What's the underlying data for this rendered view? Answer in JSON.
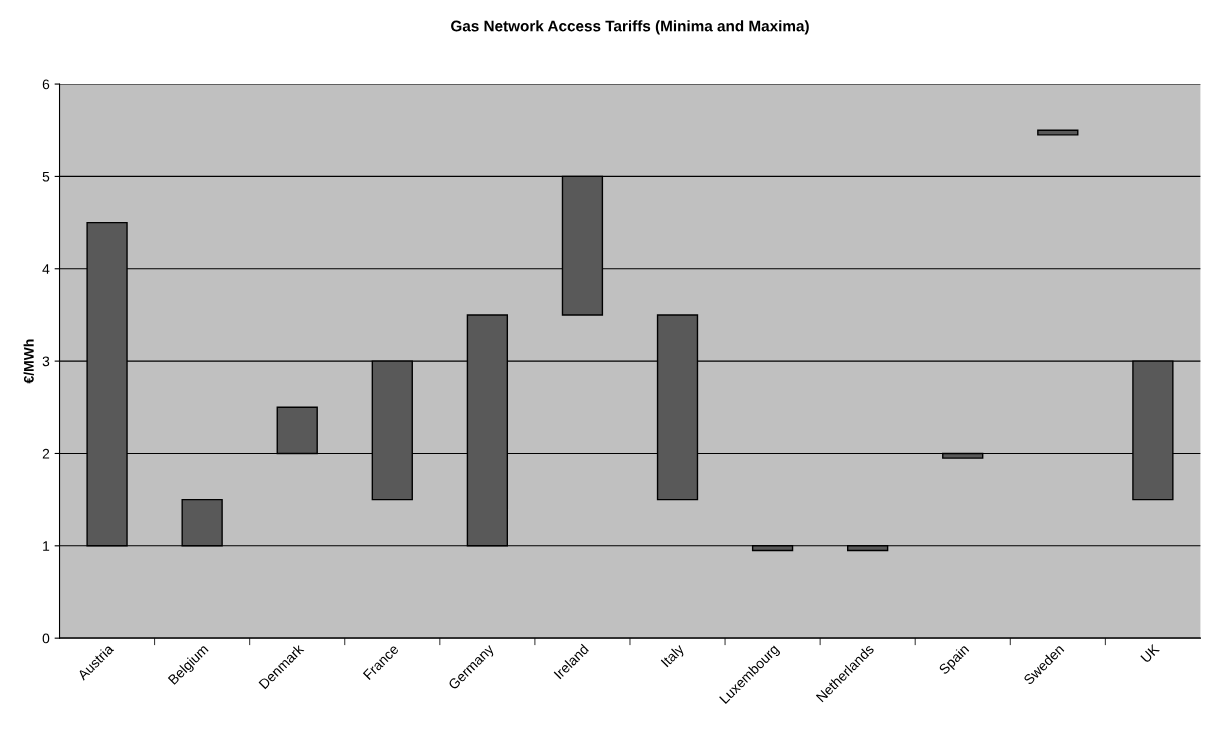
{
  "chart_data": {
    "type": "bar",
    "title": "Gas Network Access Tariffs (Minima and Maxima)",
    "ylabel": "€/MWh",
    "categories": [
      "Austria",
      "Belgium",
      "Denmark",
      "France",
      "Germany",
      "Ireland",
      "Italy",
      "Luxembourg",
      "Netherlands",
      "Spain",
      "Sweden",
      "UK"
    ],
    "base": [
      1,
      1,
      2,
      1.5,
      1,
      3.5,
      1.5,
      0.95,
      0.95,
      1.95,
      5.45,
      1.5
    ],
    "values": [
      3.5,
      0.5,
      0.5,
      1.5,
      2.5,
      1.5,
      2,
      0.05,
      0.05,
      0.05,
      0.05,
      1.5
    ],
    "color": "#595959",
    "ylim": [
      0,
      6
    ],
    "yticks": [
      0,
      1,
      2,
      3,
      4,
      5,
      6
    ],
    "grid": "y",
    "legend": false
  }
}
